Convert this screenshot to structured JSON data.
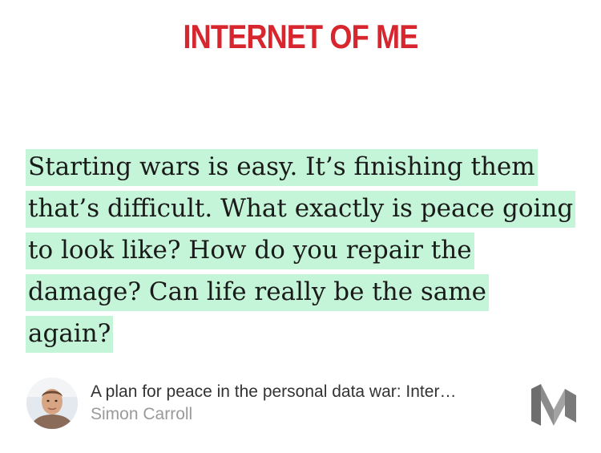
{
  "header": {
    "publication": "INTERNET OF ME"
  },
  "quote": {
    "lines": [
      "Starting wars is easy. It’s finishing them",
      "that’s difficult. What exactly is peace going",
      "to look like? How do you repair the",
      "damage? Can life really be the same again?"
    ]
  },
  "attribution": {
    "avatar_icon": "author-avatar-photo",
    "article_title": "A plan for peace in the personal data war: Inter…",
    "author": "Simon Carroll",
    "logo_icon": "medium-logo-icon"
  },
  "colors": {
    "publication_red": "#d7262d",
    "highlight_green": "#c4f5d8",
    "author_gray": "#9a9a9a",
    "logo_gray": "#7a7a7a"
  }
}
